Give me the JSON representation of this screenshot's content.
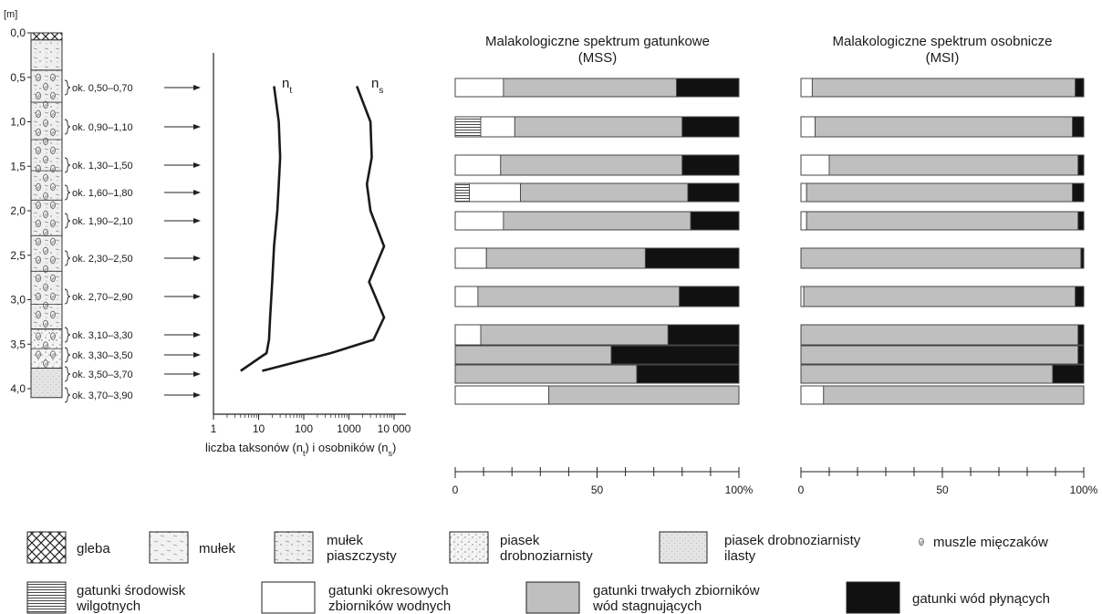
{
  "column": {
    "unit_label": "[m]",
    "depth_ticks": [
      "0,0",
      "0,5",
      "1,0",
      "1,5",
      "2,0",
      "2,5",
      "3,0",
      "3,5",
      "4,0"
    ],
    "sample_labels": [
      "ok. 0,50–0,70",
      "ok. 0,90–1,10",
      "ok. 1,30–1,50",
      "ok. 1,60–1,80",
      "ok. 1,90–2,10",
      "ok. 2,30–2,50",
      "ok. 2,70–2,90",
      "ok. 3,10–3,30",
      "ok. 3,30–3,50",
      "ok. 3,50–3,70",
      "ok. 3,70–3,90"
    ],
    "layers": [
      {
        "from": 0.0,
        "to": 0.08,
        "lithology": "gleba"
      },
      {
        "from": 0.08,
        "to": 0.42,
        "lithology": "mułek piaszczysty",
        "shells": false
      },
      {
        "from": 0.42,
        "to": 3.33,
        "lithology": "mułek piaszczysty",
        "shells": true
      },
      {
        "from": 3.33,
        "to": 3.77,
        "lithology": "piasek drobnoziarnisty",
        "shells": true
      },
      {
        "from": 3.77,
        "to": 4.1,
        "lithology": "piasek drobnoziarnisty ilasty",
        "shells": false
      }
    ]
  },
  "chart_data": [
    {
      "type": "line",
      "xscale": "log",
      "xlabel": "liczba taksonów (nt) i osobników (ns)",
      "x_ticks": [
        "1",
        "10",
        "100",
        "1000",
        "10 000"
      ],
      "xlim": [
        1,
        10000
      ],
      "ylim": [
        0,
        4.1
      ],
      "series": [
        {
          "name": "nt",
          "points": [
            [
              22,
              0.6
            ],
            [
              28,
              1.0
            ],
            [
              30,
              1.4
            ],
            [
              28,
              1.7
            ],
            [
              26,
              2.0
            ],
            [
              22,
              2.4
            ],
            [
              20,
              2.8
            ],
            [
              18,
              3.2
            ],
            [
              17,
              3.45
            ],
            [
              15,
              3.6
            ],
            [
              4,
              3.8
            ]
          ]
        },
        {
          "name": "ns",
          "points": [
            [
              1500,
              0.6
            ],
            [
              3000,
              1.0
            ],
            [
              3200,
              1.4
            ],
            [
              2500,
              1.7
            ],
            [
              3000,
              2.0
            ],
            [
              6000,
              2.4
            ],
            [
              2800,
              2.8
            ],
            [
              6000,
              3.2
            ],
            [
              3500,
              3.45
            ],
            [
              400,
              3.6
            ],
            [
              12,
              3.8
            ]
          ]
        }
      ]
    },
    {
      "type": "bar",
      "stacked": true,
      "orientation": "horizontal",
      "title": "Malakologiczne spektrum gatunkowe",
      "subtitle": "(MSS)",
      "unit": "%",
      "categories": [
        "ok. 0,50–0,70",
        "ok. 0,90–1,10",
        "ok. 1,30–1,50",
        "ok. 1,60–1,80",
        "ok. 1,90–2,10",
        "ok. 2,30–2,50",
        "ok. 2,70–2,90",
        "ok. 3,10–3,30",
        "ok. 3,30–3,50",
        "ok. 3,50–3,70",
        "ok. 3,70–3,90"
      ],
      "series": [
        {
          "name": "gatunki środowisk wilgotnych",
          "values": [
            0,
            9,
            0,
            5,
            0,
            0,
            0,
            0,
            0,
            0,
            0
          ]
        },
        {
          "name": "gatunki okresowych zbiorników wodnych",
          "values": [
            17,
            12,
            16,
            18,
            17,
            11,
            8,
            9,
            0,
            0,
            33
          ]
        },
        {
          "name": "gatunki trwałych zbiorników wód stagnujących",
          "values": [
            61,
            59,
            64,
            59,
            66,
            56,
            71,
            66,
            55,
            64,
            67
          ]
        },
        {
          "name": "gatunki wód płynących",
          "values": [
            22,
            20,
            20,
            18,
            17,
            33,
            21,
            25,
            45,
            36,
            0
          ]
        }
      ],
      "x_ticks": [
        "0",
        "50",
        "100%"
      ],
      "xlim": [
        0,
        100
      ]
    },
    {
      "type": "bar",
      "stacked": true,
      "orientation": "horizontal",
      "title": "Malakologiczne spektrum osobnicze",
      "subtitle": "(MSI)",
      "unit": "%",
      "categories": [
        "ok. 0,50–0,70",
        "ok. 0,90–1,10",
        "ok. 1,30–1,50",
        "ok. 1,60–1,80",
        "ok. 1,90–2,10",
        "ok. 2,30–2,50",
        "ok. 2,70–2,90",
        "ok. 3,10–3,30",
        "ok. 3,30–3,50",
        "ok. 3,50–3,70",
        "ok. 3,70–3,90"
      ],
      "series": [
        {
          "name": "gatunki środowisk wilgotnych",
          "values": [
            0,
            0,
            0,
            0,
            0,
            0,
            0,
            0,
            0,
            0,
            0
          ]
        },
        {
          "name": "gatunki okresowych zbiorników wodnych",
          "values": [
            4,
            5,
            10,
            2,
            2,
            0,
            1,
            0,
            0,
            0,
            8
          ]
        },
        {
          "name": "gatunki trwałych zbiorników wód stagnujących",
          "values": [
            93,
            91,
            88,
            94,
            96,
            99,
            96,
            98,
            98,
            89,
            92
          ]
        },
        {
          "name": "gatunki wód płynących",
          "values": [
            3,
            4,
            2,
            4,
            2,
            1,
            3,
            2,
            2,
            11,
            0
          ]
        }
      ],
      "x_ticks": [
        "0",
        "50",
        "100%"
      ],
      "xlim": [
        0,
        100
      ]
    }
  ],
  "legend": {
    "row1": [
      {
        "key": "gleba",
        "label": "gleba"
      },
      {
        "key": "mulek",
        "label": "mułek"
      },
      {
        "key": "mulek-piaszczysty",
        "label": "mułek\npiaszczysty"
      },
      {
        "key": "piasek-drobnoziarnisty",
        "label": "piasek\ndrobnoziarnisty"
      },
      {
        "key": "piasek-ilasty",
        "label": "piasek drobnoziarnisty\nilasty"
      },
      {
        "key": "muszle",
        "label": "muszle mięczaków"
      }
    ],
    "row2": [
      {
        "key": "wilgotne",
        "label": "gatunki środowisk\nwilgotnych"
      },
      {
        "key": "okresowe",
        "label": "gatunki okresowych\nzbiorników wodnych"
      },
      {
        "key": "trwale",
        "label": "gatunki trwałych zbiorników\nwód stagnujących"
      },
      {
        "key": "plynace",
        "label": "gatunki wód płynących"
      }
    ]
  },
  "colors": {
    "okresowe": "#ffffff",
    "trwale": "#bfbfbf",
    "plynace": "#111111",
    "outline": "#444444",
    "line": "#1a1a1a"
  }
}
